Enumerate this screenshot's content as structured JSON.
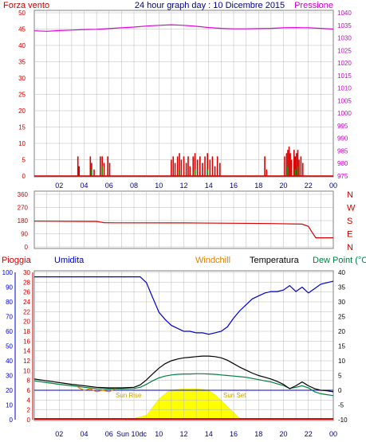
{
  "header": {
    "left_label": "Forza vento",
    "title": "24 hour graph day : 10 Dicembre 2015",
    "right_label": "Pressione"
  },
  "panel2": {
    "direction_labels": [
      "N",
      "W",
      "S",
      "E",
      "N"
    ]
  },
  "panel3": {
    "labels": {
      "rain": "Pioggia",
      "humidity": "Umidita",
      "windchill": "Windchill",
      "temperature": "Temperatura",
      "dewpoint": "Dew Point (°C"
    },
    "sun_rise_label": "Sun Rise",
    "sun_set_label": "Sun Set",
    "sun_marker_label": "Sun 10dc"
  },
  "colors": {
    "frame": "#808080",
    "grid": "#b8b8b8",
    "wind": "#d80000",
    "gust_green": "#00a000",
    "pressure": "#e000e0",
    "direction": "#d80000",
    "humidity": "#0000cc",
    "temperature": "#000000",
    "dewpoint": "#008040",
    "windchill": "#e08000",
    "sun": "#ffff00",
    "rain": "#d80000",
    "title": "#00008b",
    "left_axis": "#cc0000",
    "right_axis": "#cc00cc",
    "humidity_axis": "#0000cc",
    "temp_axis": "#000000"
  },
  "chart_data": [
    {
      "type": "bar",
      "title": "24 hour graph day : 10 Dicembre 2015",
      "ylabel": "Forza vento",
      "y2label": "Pressione",
      "x_ticks": [
        "02",
        "04",
        "06",
        "08",
        "10",
        "12",
        "14",
        "16",
        "18",
        "20",
        "22",
        "00"
      ],
      "ylim": [
        0,
        50
      ],
      "y_ticks": [
        0,
        5,
        10,
        15,
        20,
        25,
        30,
        35,
        40,
        45,
        50
      ],
      "y2lim": [
        975,
        1040
      ],
      "y2_ticks": [
        975,
        980,
        985,
        990,
        995,
        1000,
        1005,
        1010,
        1015,
        1020,
        1025,
        1030,
        1035,
        1040
      ],
      "wind_gust_bars": [
        {
          "h": 3.5,
          "v": 6
        },
        {
          "h": 3.6,
          "v": 3
        },
        {
          "h": 4.5,
          "v": 6
        },
        {
          "h": 4.6,
          "v": 4
        },
        {
          "h": 4.8,
          "v": 2
        },
        {
          "h": 5.3,
          "v": 6
        },
        {
          "h": 5.45,
          "v": 6
        },
        {
          "h": 5.6,
          "v": 4
        },
        {
          "h": 5.9,
          "v": 6
        },
        {
          "h": 6.05,
          "v": 4
        },
        {
          "h": 11.0,
          "v": 5
        },
        {
          "h": 11.15,
          "v": 6
        },
        {
          "h": 11.3,
          "v": 4
        },
        {
          "h": 11.5,
          "v": 6
        },
        {
          "h": 11.65,
          "v": 7
        },
        {
          "h": 11.8,
          "v": 5
        },
        {
          "h": 12.0,
          "v": 6
        },
        {
          "h": 12.2,
          "v": 4
        },
        {
          "h": 12.35,
          "v": 6
        },
        {
          "h": 12.5,
          "v": 3
        },
        {
          "h": 12.75,
          "v": 6
        },
        {
          "h": 12.9,
          "v": 7
        },
        {
          "h": 13.1,
          "v": 5
        },
        {
          "h": 13.3,
          "v": 6
        },
        {
          "h": 13.5,
          "v": 4
        },
        {
          "h": 13.7,
          "v": 6
        },
        {
          "h": 13.9,
          "v": 7
        },
        {
          "h": 14.1,
          "v": 5
        },
        {
          "h": 14.3,
          "v": 6
        },
        {
          "h": 14.5,
          "v": 3
        },
        {
          "h": 14.7,
          "v": 6
        },
        {
          "h": 14.9,
          "v": 4
        },
        {
          "h": 18.5,
          "v": 6
        },
        {
          "h": 18.65,
          "v": 2
        },
        {
          "h": 20.1,
          "v": 6
        },
        {
          "h": 20.25,
          "v": 7
        },
        {
          "h": 20.35,
          "v": 8
        },
        {
          "h": 20.45,
          "v": 9
        },
        {
          "h": 20.55,
          "v": 7
        },
        {
          "h": 20.65,
          "v": 5
        },
        {
          "h": 20.85,
          "v": 8
        },
        {
          "h": 20.95,
          "v": 6
        },
        {
          "h": 21.05,
          "v": 7
        },
        {
          "h": 21.15,
          "v": 8
        },
        {
          "h": 21.25,
          "v": 5
        },
        {
          "h": 21.4,
          "v": 6
        },
        {
          "h": 21.55,
          "v": 4
        }
      ],
      "wind_avg_bars": [
        {
          "h": 4.6,
          "v": 2
        },
        {
          "h": 5.45,
          "v": 3
        },
        {
          "h": 11.65,
          "v": 2
        },
        {
          "h": 12.9,
          "v": 2
        },
        {
          "h": 13.9,
          "v": 2
        },
        {
          "h": 20.35,
          "v": 3
        },
        {
          "h": 20.95,
          "v": 2
        },
        {
          "h": 21.15,
          "v": 3
        }
      ],
      "pressure": {
        "x": [
          0,
          1,
          2,
          3,
          4,
          5,
          6,
          7,
          8,
          9,
          10,
          11,
          12,
          13,
          14,
          15,
          16,
          17,
          18,
          19,
          20,
          21,
          22,
          23,
          24
        ],
        "values": [
          1032.8,
          1032.6,
          1032.9,
          1033.1,
          1033.3,
          1033.4,
          1033.7,
          1034.0,
          1034.3,
          1034.7,
          1035.0,
          1035.2,
          1035.0,
          1034.6,
          1034.1,
          1033.8,
          1033.6,
          1033.6,
          1033.7,
          1033.8,
          1034.0,
          1034.1,
          1034.0,
          1033.8,
          1033.5
        ]
      }
    },
    {
      "type": "line",
      "ylabel_ticks": [
        0,
        90,
        180,
        270,
        360
      ],
      "ylim": [
        0,
        360
      ],
      "direction_labels": [
        "N",
        "W",
        "S",
        "E",
        "N"
      ],
      "wind_direction": {
        "x": [
          0,
          5,
          5.6,
          6.5,
          12,
          16,
          19,
          21.5,
          22.0,
          22.3,
          22.6,
          23,
          24
        ],
        "values": [
          176,
          174,
          166,
          165,
          164,
          162,
          160,
          156,
          140,
          100,
          62,
          62,
          62
        ]
      }
    },
    {
      "type": "line",
      "series": [
        {
          "name": "Umidita",
          "x": [
            0,
            1,
            2,
            3,
            4,
            5,
            6,
            7,
            8,
            8.5,
            9,
            9.5,
            10,
            10.5,
            11,
            11.5,
            12,
            12.5,
            13,
            13.5,
            14,
            14.5,
            15,
            15.5,
            16,
            16.5,
            17,
            17.5,
            18,
            18.5,
            19,
            19.5,
            20,
            20.5,
            21,
            21.5,
            22,
            22.5,
            23,
            23.5,
            24
          ],
          "values": [
            97,
            97,
            97,
            97,
            97,
            97,
            97,
            97,
            97,
            97,
            93,
            83,
            73,
            68,
            64,
            62,
            60,
            60,
            59,
            59,
            58,
            59,
            60,
            63,
            69,
            74,
            78,
            82,
            84,
            86,
            87,
            87,
            88,
            91,
            87,
            90,
            86,
            89,
            92,
            93,
            94
          ]
        },
        {
          "name": "Temperatura",
          "x": [
            0,
            1,
            2,
            3,
            4,
            5,
            6,
            7,
            8,
            8.5,
            9,
            9.5,
            10,
            10.5,
            11,
            11.5,
            12,
            12.5,
            13,
            13.5,
            14,
            14.5,
            15,
            15.5,
            16,
            16.5,
            17,
            17.5,
            18,
            18.5,
            19,
            19.5,
            20,
            20.5,
            21,
            21.5,
            22,
            22.5,
            23,
            23.5,
            24
          ],
          "values": [
            3.8,
            3.2,
            2.6,
            2.0,
            1.5,
            1.0,
            0.8,
            0.8,
            1.0,
            1.8,
            3.5,
            5.5,
            7.5,
            9.0,
            10.0,
            10.6,
            11.0,
            11.2,
            11.4,
            11.6,
            11.6,
            11.4,
            11.0,
            10.2,
            9.0,
            7.8,
            6.8,
            5.8,
            5.0,
            4.4,
            3.8,
            3.0,
            2.0,
            0.5,
            1.5,
            2.8,
            1.5,
            0.5,
            0.0,
            -0.2,
            -0.5
          ]
        },
        {
          "name": "Dew Point",
          "x": [
            0,
            1,
            2,
            3,
            4,
            5,
            6,
            7,
            8,
            8.5,
            9,
            9.5,
            10,
            10.5,
            11,
            11.5,
            12,
            12.5,
            13,
            13.5,
            14,
            14.5,
            15,
            15.5,
            16,
            16.5,
            17,
            17.5,
            18,
            18.5,
            19,
            19.5,
            20,
            20.5,
            21,
            21.5,
            22,
            22.5,
            23,
            23.5,
            24
          ],
          "values": [
            3.2,
            2.6,
            2.0,
            1.5,
            1.0,
            0.6,
            0.5,
            0.5,
            0.6,
            1.0,
            2.0,
            3.2,
            4.2,
            4.8,
            5.2,
            5.4,
            5.5,
            5.5,
            5.6,
            5.6,
            5.5,
            5.4,
            5.2,
            5.0,
            4.8,
            4.6,
            4.4,
            4.0,
            3.6,
            3.2,
            2.8,
            2.2,
            1.6,
            0.6,
            1.0,
            1.5,
            0.8,
            -0.5,
            -1.2,
            -1.5,
            -1.8
          ]
        },
        {
          "name": "Windchill",
          "x": [
            3.5,
            4,
            4.5,
            5,
            5.5,
            6,
            6.5
          ],
          "values": [
            1.0,
            0.0,
            0.5,
            -0.5,
            0.0,
            -0.5,
            0.5
          ]
        },
        {
          "name": "Pioggia",
          "x": [
            0,
            24
          ],
          "values": [
            0,
            0
          ]
        }
      ],
      "ylim_humidity": [
        0,
        100
      ],
      "humidity_ticks": [
        0,
        10,
        20,
        30,
        40,
        50,
        60,
        70,
        80,
        90,
        100
      ],
      "ylim_rain": [
        0,
        30
      ],
      "rain_ticks": [
        0,
        2,
        4,
        6,
        8,
        10,
        12,
        14,
        16,
        18,
        20,
        22,
        24,
        26,
        28,
        30
      ],
      "ylim_temp": [
        -10,
        40
      ],
      "temp_ticks": [
        -10,
        -5,
        0,
        5,
        10,
        15,
        20,
        25,
        30,
        35,
        40
      ],
      "sun_radiation": {
        "x": [
          7.3,
          8,
          9,
          10,
          10.7,
          11,
          12,
          12.5,
          13,
          14,
          14.5,
          15,
          16,
          16.6
        ],
        "values": [
          0,
          0.8,
          3,
          14,
          19,
          20,
          21,
          21,
          21,
          20,
          17,
          13,
          5,
          0
        ]
      }
    }
  ]
}
